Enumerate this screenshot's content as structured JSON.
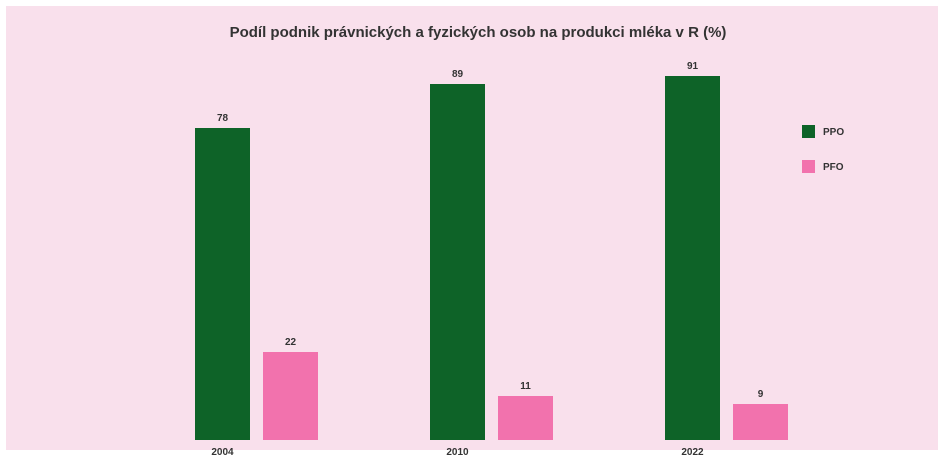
{
  "chart_data": {
    "type": "bar",
    "title": "Podíl podnik   právnických a fyzických osob na produkci mléka v    R (%)",
    "xlabel": "",
    "ylabel": "",
    "categories": [
      "2004",
      "2010",
      "2022"
    ],
    "series": [
      {
        "name": "PPO",
        "color": "#0e6328",
        "values": [
          78,
          89,
          91
        ]
      },
      {
        "name": "PFO",
        "color": "#f272ad",
        "values": [
          22,
          11,
          9
        ]
      }
    ],
    "ylim": [
      0,
      100
    ],
    "grid": false,
    "legend": "right",
    "background": "#f9e0ec"
  }
}
